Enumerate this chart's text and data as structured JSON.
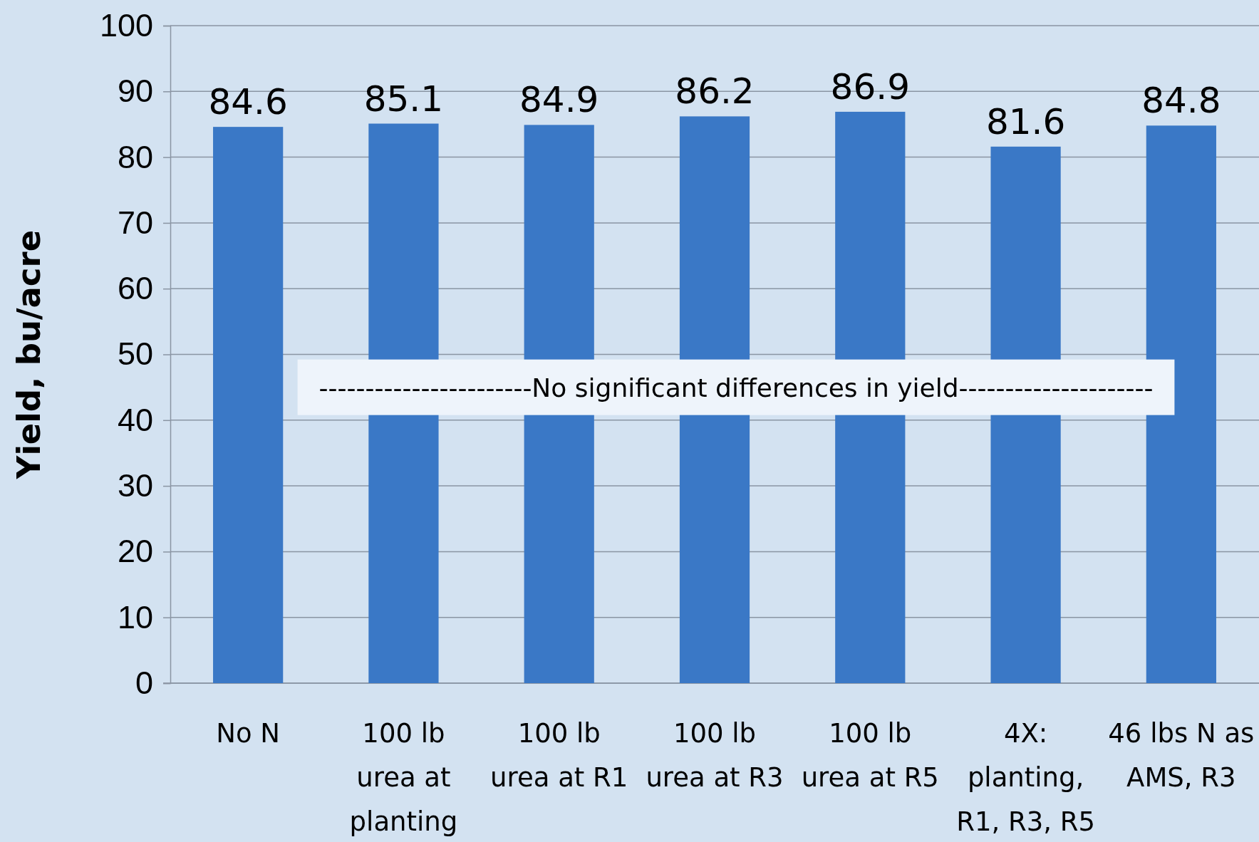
{
  "chart_data": {
    "type": "bar",
    "ylabel": "Yield, bu/acre",
    "categories": [
      "No N",
      "100 lb urea at planting",
      "100 lb urea at R1",
      "100 lb urea at R3",
      "100 lb urea at R5",
      "4X: planting, R1, R3, R5",
      "46 lbs N as AMS, R3"
    ],
    "values": [
      84.6,
      85.1,
      84.9,
      86.2,
      86.9,
      81.6,
      84.8
    ],
    "color": "#3a78c6",
    "ylim": [
      0,
      100
    ],
    "yticks": [
      0,
      10,
      20,
      30,
      40,
      50,
      60,
      70,
      80,
      90,
      100
    ],
    "grid": "y",
    "data_labels": true,
    "annotations": [
      "-----------------------No significant differences in yield---------------------"
    ]
  }
}
